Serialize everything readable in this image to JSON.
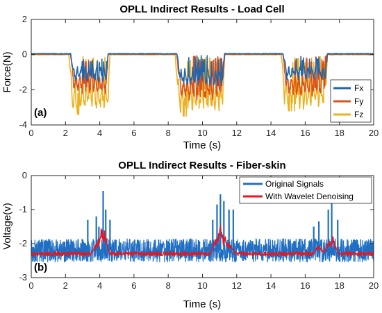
{
  "chart_data": [
    {
      "type": "line",
      "title": "OPLL Indirect Results - Load Cell",
      "xlabel": "Time (s)",
      "ylabel": "Force(N)",
      "panel_label": "(a)",
      "xlim": [
        0,
        20
      ],
      "ylim": [
        -4,
        2
      ],
      "xticks": [
        "0",
        "2",
        "4",
        "6",
        "8",
        "10",
        "12",
        "14",
        "16",
        "18",
        "20"
      ],
      "yticks": [
        "2",
        "0",
        "-2",
        "-4"
      ],
      "grid": false,
      "legend_position": "bottom-right",
      "colors": {
        "Fx": "#2166ac",
        "Fy": "#d95319",
        "Fz": "#edb120"
      },
      "series": [
        {
          "name": "Fx",
          "baseline": 0.05,
          "bursts": [
            {
              "start": 2.3,
              "end": 4.5,
              "depth": -1.4
            },
            {
              "start": 8.5,
              "end": 11.3,
              "depth": -1.6
            },
            {
              "start": 14.7,
              "end": 17.3,
              "depth": -1.3
            }
          ]
        },
        {
          "name": "Fy",
          "baseline": 0.02,
          "bursts": [
            {
              "start": 2.3,
              "end": 4.5,
              "depth": -2.0
            },
            {
              "start": 8.5,
              "end": 11.3,
              "depth": -2.3
            },
            {
              "start": 14.7,
              "end": 17.3,
              "depth": -2.1
            }
          ]
        },
        {
          "name": "Fz",
          "baseline": 0.0,
          "bursts": [
            {
              "start": 2.2,
              "end": 4.6,
              "depth": -2.8,
              "min": -3.4
            },
            {
              "start": 8.4,
              "end": 11.3,
              "depth": -2.9,
              "min": -3.5
            },
            {
              "start": 14.6,
              "end": 17.3,
              "depth": -2.7,
              "min": -3.2
            }
          ]
        }
      ]
    },
    {
      "type": "line",
      "title": "OPLL Indirect Results - Fiber-skin",
      "xlabel": "Time (s)",
      "ylabel": "Voltage(v)",
      "panel_label": "(b)",
      "xlim": [
        0,
        20
      ],
      "ylim": [
        -3,
        0
      ],
      "xticks": [
        "0",
        "2",
        "4",
        "6",
        "8",
        "10",
        "12",
        "14",
        "16",
        "18",
        "20"
      ],
      "yticks": [
        "0",
        "-1",
        "-2",
        "-3"
      ],
      "grid": false,
      "legend_position": "top-right",
      "colors": {
        "Original Signals": "#1f6fc5",
        "With Wavelet Denoising": "#e8161b"
      },
      "series": [
        {
          "name": "Original Signals",
          "band": [
            -2.55,
            -1.85
          ],
          "spikes": [
            {
              "x": 3.3,
              "y": -1.3
            },
            {
              "x": 3.8,
              "y": -1.2
            },
            {
              "x": 3.95,
              "y": -1.5
            },
            {
              "x": 4.2,
              "y": -0.45
            },
            {
              "x": 4.35,
              "y": -1.0
            },
            {
              "x": 4.6,
              "y": -1.3
            },
            {
              "x": 10.6,
              "y": -1.3
            },
            {
              "x": 10.85,
              "y": -0.85
            },
            {
              "x": 11.05,
              "y": -0.55
            },
            {
              "x": 11.25,
              "y": -0.75
            },
            {
              "x": 11.55,
              "y": -1.0
            },
            {
              "x": 11.8,
              "y": -1.0
            },
            {
              "x": 16.5,
              "y": -1.5
            },
            {
              "x": 16.8,
              "y": -1.35
            },
            {
              "x": 17.35,
              "y": -1.0
            },
            {
              "x": 17.55,
              "y": -0.5
            },
            {
              "x": 17.9,
              "y": -1.3
            }
          ]
        },
        {
          "name": "With Wavelet Denoising",
          "baseline": -2.3,
          "bumps": [
            {
              "x": 4.1,
              "y": -1.45
            },
            {
              "x": 4.25,
              "y": -1.55
            },
            {
              "x": 3.85,
              "y": -1.9
            },
            {
              "x": 10.8,
              "y": -1.75
            },
            {
              "x": 11.05,
              "y": -1.4
            },
            {
              "x": 11.3,
              "y": -1.7
            },
            {
              "x": 11.55,
              "y": -1.95
            },
            {
              "x": 16.8,
              "y": -2.0
            },
            {
              "x": 17.4,
              "y": -1.85
            },
            {
              "x": 17.6,
              "y": -1.75
            }
          ]
        }
      ]
    }
  ]
}
